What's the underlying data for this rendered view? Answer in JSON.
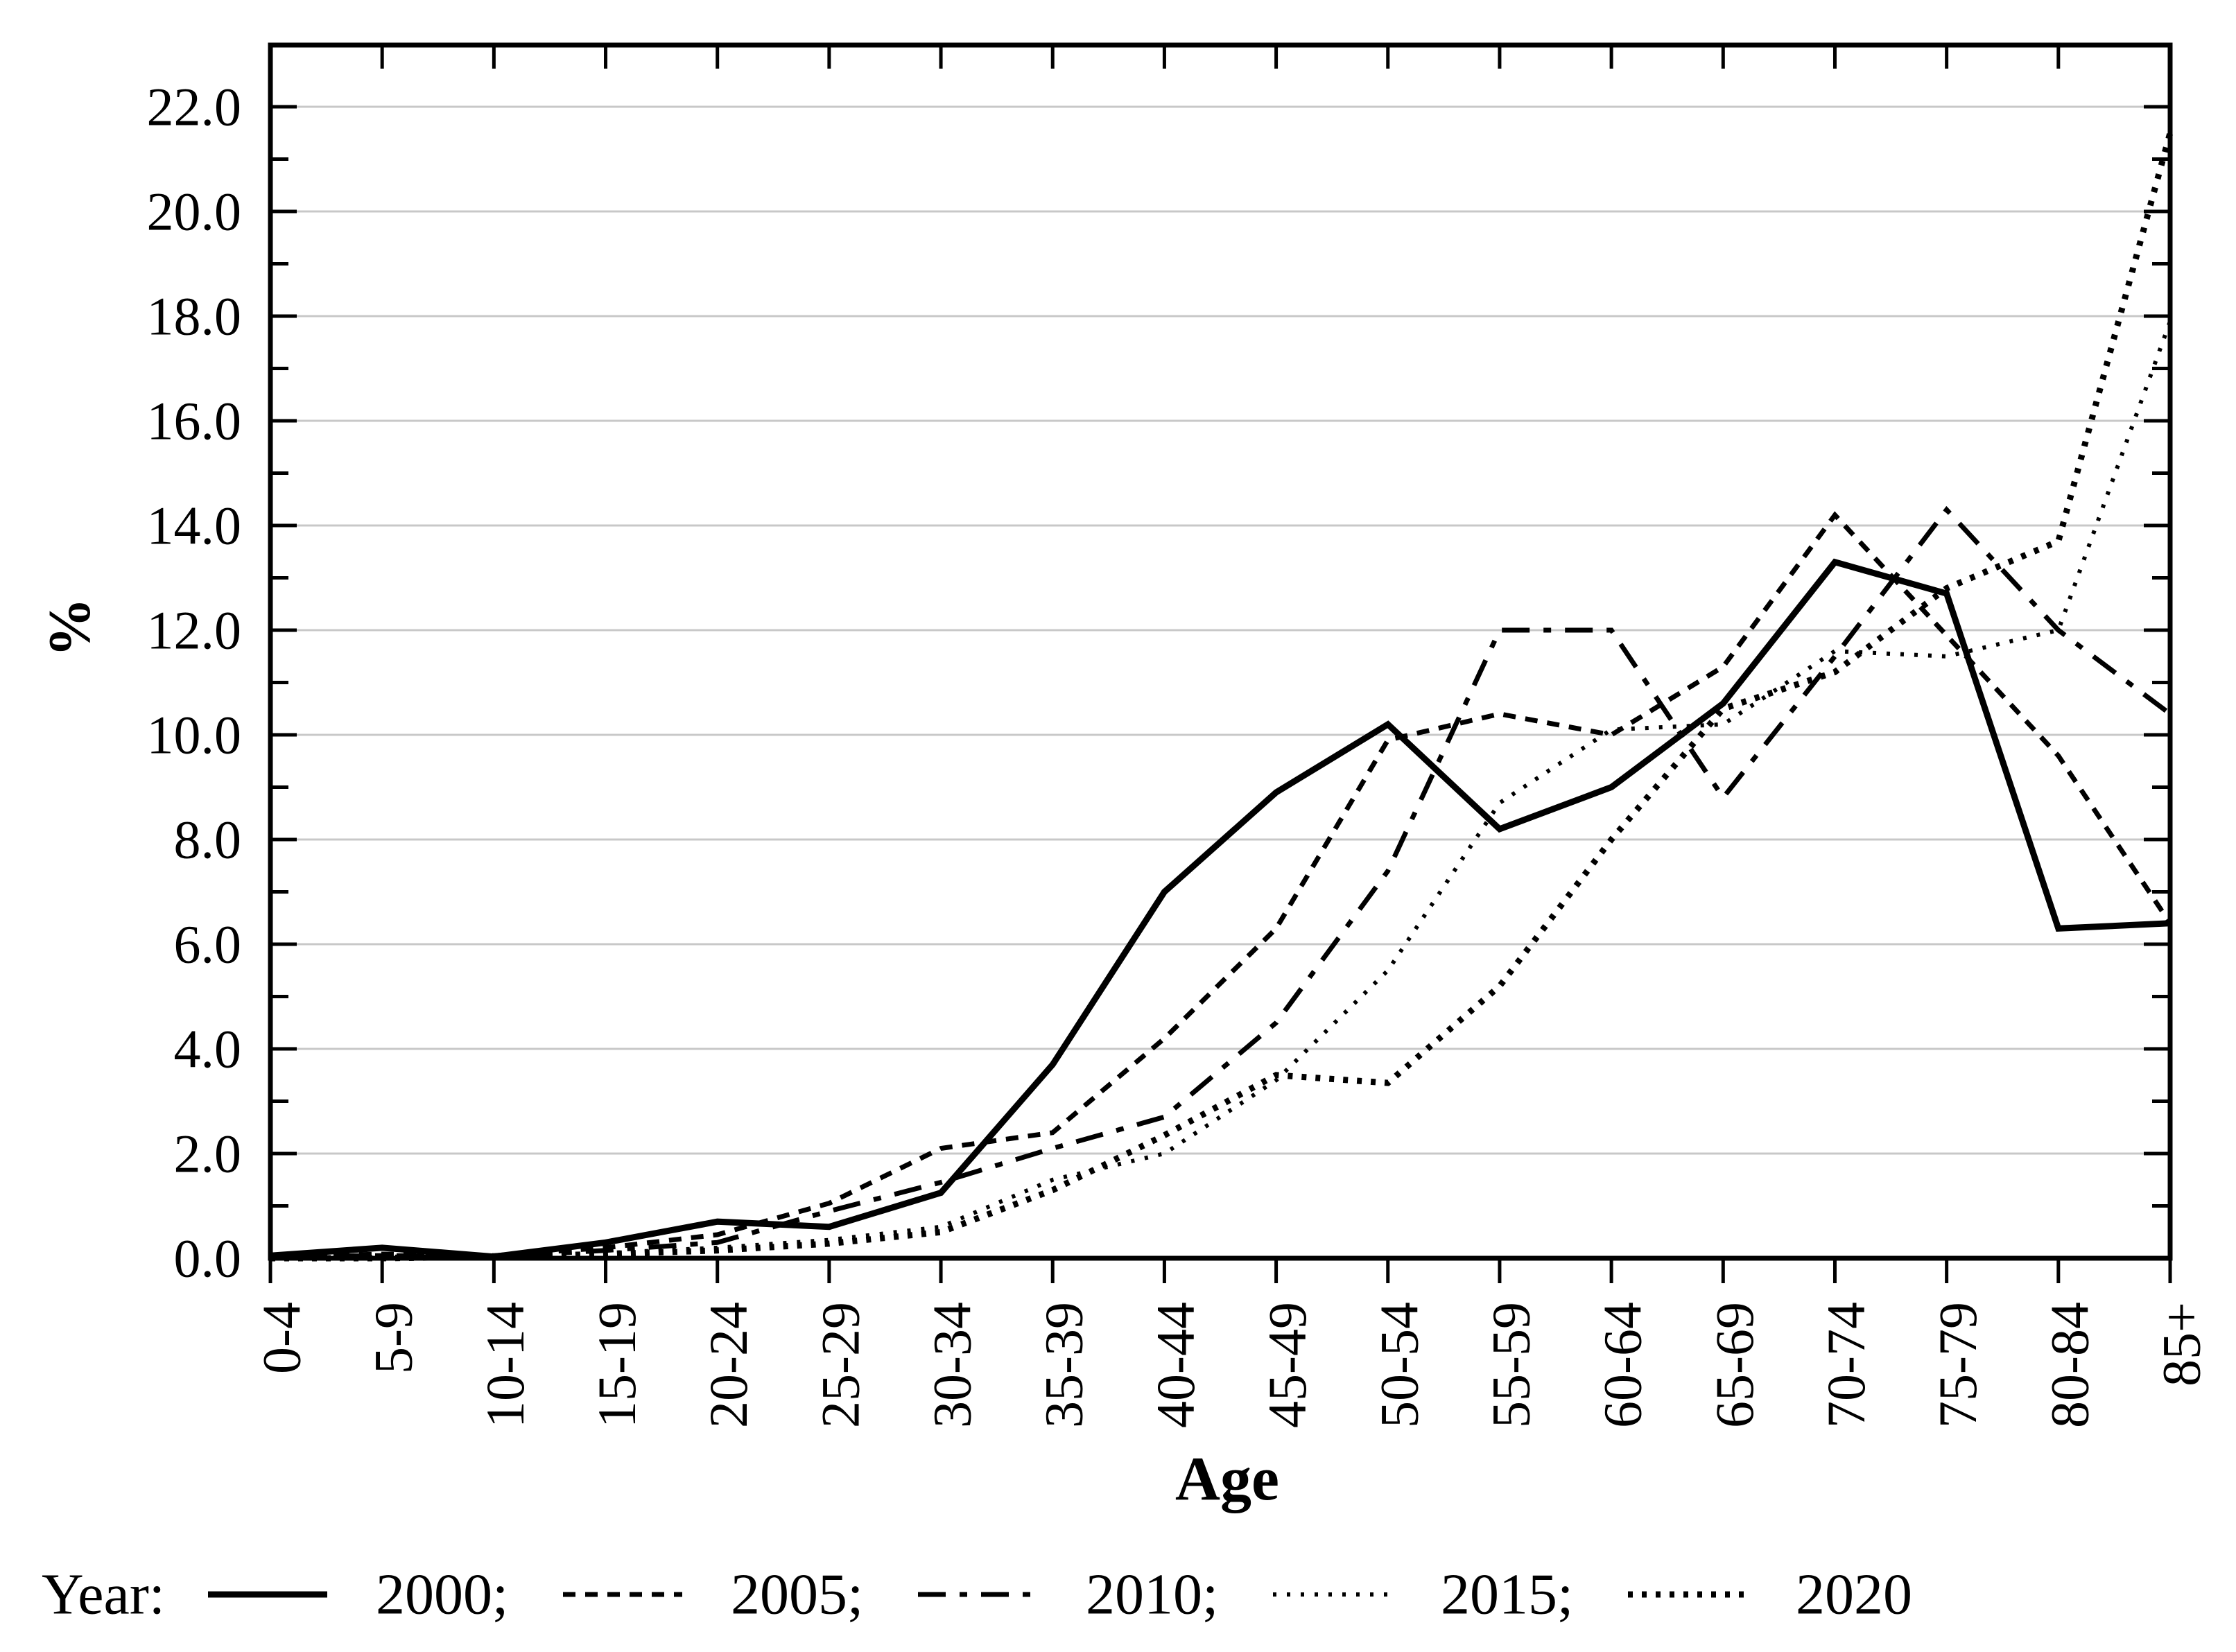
{
  "chart_data": {
    "type": "line",
    "title": "",
    "xlabel": "Age",
    "ylabel": "%",
    "ylim": [
      0,
      23.2
    ],
    "ytick_step": 2,
    "ytick_labels": [
      "0.0",
      "2.0",
      "4.0",
      "6.0",
      "8.0",
      "10.0",
      "12.0",
      "14.0",
      "16.0",
      "18.0",
      "20.0",
      "22.0"
    ],
    "grid": "horizontal",
    "legend_position": "bottom-left",
    "legend_prefix": "Year:",
    "categories": [
      "0-4",
      "5-9",
      "10-14",
      "15-19",
      "20-24",
      "25-29",
      "30-34",
      "35-39",
      "40-44",
      "45-49",
      "50-54",
      "55-59",
      "60-64",
      "65-69",
      "70-74",
      "75-79",
      "80-84",
      "85+"
    ],
    "series": [
      {
        "name": "2000",
        "legend_label": "2000;",
        "style": "solid",
        "values": [
          0.05,
          0.2,
          0.03,
          0.3,
          0.7,
          0.6,
          1.25,
          3.7,
          7.0,
          8.9,
          10.2,
          8.2,
          9.0,
          10.6,
          13.3,
          12.7,
          6.3,
          6.4
        ]
      },
      {
        "name": "2005",
        "legend_label": "2005;",
        "style": "short-dash",
        "values": [
          0.03,
          0.08,
          0.05,
          0.2,
          0.45,
          1.05,
          2.1,
          2.4,
          4.2,
          6.3,
          9.9,
          10.4,
          10.0,
          11.3,
          14.2,
          11.9,
          9.6,
          6.4
        ]
      },
      {
        "name": "2010",
        "legend_label": "2010;",
        "style": "dash-dot",
        "values": [
          0.03,
          0.05,
          0.03,
          0.15,
          0.3,
          0.9,
          1.45,
          2.1,
          2.7,
          4.5,
          7.4,
          12.0,
          12.0,
          8.8,
          11.5,
          14.3,
          12.0,
          10.4
        ]
      },
      {
        "name": "2015",
        "legend_label": "2015;",
        "style": "fine-dot",
        "values": [
          0.0,
          0.03,
          0.03,
          0.1,
          0.2,
          0.35,
          0.6,
          1.5,
          2.0,
          3.4,
          5.5,
          8.7,
          10.1,
          10.2,
          11.6,
          11.5,
          12.0,
          17.9
        ]
      },
      {
        "name": "2020",
        "legend_label": "2020",
        "style": "bold-dot",
        "values": [
          0.0,
          0.0,
          0.03,
          0.08,
          0.15,
          0.28,
          0.5,
          1.3,
          2.35,
          3.5,
          3.35,
          5.2,
          8.0,
          10.5,
          11.2,
          12.8,
          13.7,
          21.5
        ]
      }
    ],
    "colors": {
      "line": "#000000",
      "grid": "#c8c8c8",
      "background": "#ffffff"
    }
  }
}
